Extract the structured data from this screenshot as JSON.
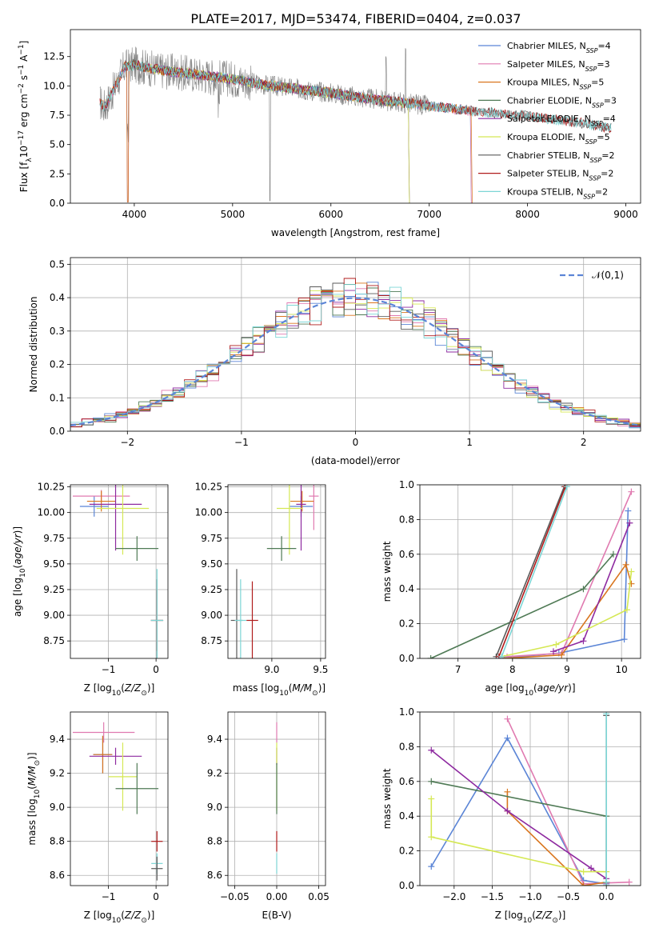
{
  "figure_title": "PLATE=2017, MJD=53474, FIBERID=0404, z=0.037",
  "colors": {
    "chabrier_miles": "#5b85d6",
    "salpeter_miles": "#e07ab0",
    "kroupa_miles": "#d9761f",
    "chabrier_elodie": "#4f7a55",
    "salpeter_elodie": "#8e2aa0",
    "kroupa_elodie": "#d5e854",
    "chabrier_stelib": "#5a5a5a",
    "salpeter_stelib": "#b01c1c",
    "kroupa_stelib": "#7dd6d6",
    "data": "#808080",
    "normal": "#5b85d6"
  },
  "chart_data": [
    {
      "id": "spectrum",
      "type": "line",
      "title": "PLATE=2017, MJD=53474, FIBERID=0404, z=0.037",
      "xlabel": "wavelength [Angstrom, rest frame]",
      "ylabel": "Flux [f_λ 10^-17 erg cm^-2 s^-1 A^-1]",
      "xlim": [
        3350,
        9150
      ],
      "ylim": [
        0,
        14.8
      ],
      "xticks": [
        4000,
        5000,
        6000,
        7000,
        8000,
        9000
      ],
      "yticks": [
        0.0,
        2.5,
        5.0,
        7.5,
        10.0,
        12.5
      ],
      "legend_position": "upper-right",
      "legend": [
        {
          "model": "Chabrier MILES",
          "nssp": "4",
          "color_key": "chabrier_miles"
        },
        {
          "model": "Salpeter MILES",
          "nssp": "3",
          "color_key": "salpeter_miles"
        },
        {
          "model": "Kroupa MILES",
          "nssp": "5",
          "color_key": "kroupa_miles"
        },
        {
          "model": "Chabrier ELODIE",
          "nssp": "3",
          "color_key": "chabrier_elodie"
        },
        {
          "model": "Salpeter ELODIE",
          "nssp": "4",
          "color_key": "salpeter_elodie"
        },
        {
          "model": "Kroupa ELODIE",
          "nssp": "5",
          "color_key": "kroupa_elodie"
        },
        {
          "model": "Chabrier STELIB",
          "nssp": "2",
          "color_key": "chabrier_stelib"
        },
        {
          "model": "Salpeter STELIB",
          "nssp": "2",
          "color_key": "salpeter_stelib"
        },
        {
          "model": "Kroupa STELIB",
          "nssp": "2",
          "color_key": "kroupa_stelib"
        }
      ],
      "continuum": {
        "x": [
          3650,
          3700,
          3800,
          3900,
          4000,
          4100,
          4300,
          4500,
          4700,
          5000,
          5300,
          5600,
          6000,
          6300,
          6600,
          7000,
          7400,
          8000,
          8500,
          8850
        ],
        "y": [
          8.6,
          8.2,
          9.8,
          11.6,
          11.8,
          11.6,
          11.3,
          11.1,
          10.9,
          10.6,
          10.1,
          9.8,
          9.4,
          9.0,
          8.7,
          8.3,
          7.9,
          7.4,
          6.9,
          6.4
        ]
      },
      "model_ranges": {
        "chabrier_miles": [
          3650,
          7420
        ],
        "salpeter_miles": [
          3650,
          7420
        ],
        "kroupa_miles": [
          3650,
          7430
        ],
        "chabrier_elodie": [
          3900,
          6790
        ],
        "salpeter_elodie": [
          3900,
          6790
        ],
        "kroupa_elodie": [
          3900,
          6790
        ],
        "chabrier_stelib": [
          3650,
          8850
        ],
        "salpeter_stelib": [
          3650,
          8850
        ],
        "kroupa_stelib": [
          3650,
          8850
        ]
      }
    },
    {
      "id": "residuals",
      "type": "step",
      "xlabel": "(data-model)/error",
      "ylabel": "Normed distribution",
      "xlim": [
        -2.5,
        2.5
      ],
      "ylim": [
        0,
        0.52
      ],
      "xticks": [
        -2,
        -1,
        0,
        1,
        2
      ],
      "yticks": [
        0.0,
        0.1,
        0.2,
        0.3,
        0.4,
        0.5
      ],
      "legend_label": "𝒩(0,1)",
      "legend_position": "upper-right",
      "bin_width": 0.1
    },
    {
      "id": "age_vs_Z",
      "type": "errorbar",
      "xlabel": "Z [log10(Z/Z⊙)]",
      "ylabel": "age [log10(age/yr)]",
      "xlim": [
        -1.8,
        0.25
      ],
      "ylim": [
        8.58,
        10.27
      ],
      "xticks": [
        -1,
        0
      ],
      "yticks": [
        8.75,
        9.0,
        9.25,
        9.5,
        9.75,
        10.0,
        10.25
      ],
      "points": [
        {
          "key": "chabrier_miles",
          "x": -1.3,
          "y": 10.06,
          "xerr": 0.3,
          "yerr": 0.1
        },
        {
          "key": "salpeter_miles",
          "x": -1.15,
          "y": 10.16,
          "xerr": 0.6,
          "yerr": 0.06
        },
        {
          "key": "kroupa_miles",
          "x": -1.15,
          "y": 10.11,
          "xerr": 0.3,
          "yerr": 0.1
        },
        {
          "key": "salpeter_elodie",
          "x": -0.85,
          "y": 10.08,
          "xerr": 0.55,
          "yerr": 0.45
        },
        {
          "key": "kroupa_elodie",
          "x": -0.7,
          "y": 10.04,
          "xerr": 0.55,
          "yerr": 0.45
        },
        {
          "key": "chabrier_elodie",
          "x": -0.4,
          "y": 9.65,
          "xerr": 0.45,
          "yerr": 0.12
        },
        {
          "key": "chabrier_stelib",
          "x": 0.02,
          "y": 8.95,
          "xerr": 0.13,
          "yerr": 0.4
        },
        {
          "key": "salpeter_stelib",
          "x": 0.02,
          "y": 8.95,
          "xerr": 0.13,
          "yerr": 0.3
        },
        {
          "key": "kroupa_stelib",
          "x": 0.02,
          "y": 8.95,
          "xerr": 0.13,
          "yerr": 0.5
        }
      ]
    },
    {
      "id": "age_vs_mass",
      "type": "errorbar",
      "xlabel": "mass [log10(M/M⊙)]",
      "xlim": [
        8.55,
        9.55
      ],
      "ylim": [
        8.58,
        10.27
      ],
      "xticks": [
        9.0,
        9.5
      ],
      "yticks": [
        8.75,
        9.0,
        9.25,
        9.5,
        9.75,
        10.0,
        10.25
      ],
      "points": [
        {
          "key": "chabrier_miles",
          "x": 9.3,
          "y": 10.06,
          "xerr": 0.12,
          "yerr": 0.1
        },
        {
          "key": "salpeter_miles",
          "x": 9.43,
          "y": 10.16,
          "xerr": 0.05,
          "yerr": 0.33
        },
        {
          "key": "kroupa_miles",
          "x": 9.31,
          "y": 10.11,
          "xerr": 0.12,
          "yerr": 0.1
        },
        {
          "key": "salpeter_elodie",
          "x": 9.3,
          "y": 10.08,
          "xerr": 0.05,
          "yerr": 0.45
        },
        {
          "key": "kroupa_elodie",
          "x": 9.18,
          "y": 10.04,
          "xerr": 0.13,
          "yerr": 0.45
        },
        {
          "key": "chabrier_elodie",
          "x": 9.1,
          "y": 9.65,
          "xerr": 0.15,
          "yerr": 0.12
        },
        {
          "key": "chabrier_stelib",
          "x": 8.64,
          "y": 8.95,
          "xerr": 0.06,
          "yerr": 0.5
        },
        {
          "key": "salpeter_stelib",
          "x": 8.8,
          "y": 8.95,
          "xerr": 0.06,
          "yerr": 0.38
        },
        {
          "key": "kroupa_stelib",
          "x": 8.68,
          "y": 8.95,
          "xerr": 0.06,
          "yerr": 0.4
        }
      ]
    },
    {
      "id": "weight_vs_age",
      "type": "line",
      "xlabel": "age [log10(age/yr)]",
      "ylabel": "mass weight",
      "xlim": [
        6.3,
        10.35
      ],
      "ylim": [
        0,
        1.0
      ],
      "xticks": [
        7,
        8,
        9,
        10
      ],
      "yticks": [
        0.0,
        0.2,
        0.4,
        0.6,
        0.8,
        1.0
      ],
      "series": [
        {
          "key": "chabrier_miles",
          "x": [
            7.75,
            8.85,
            10.05,
            10.12
          ],
          "y": [
            0.0,
            0.03,
            0.11,
            0.85
          ]
        },
        {
          "key": "salpeter_miles",
          "x": [
            7.9,
            8.9,
            10.18
          ],
          "y": [
            0.01,
            0.03,
            0.96
          ]
        },
        {
          "key": "kroupa_miles",
          "x": [
            7.85,
            8.9,
            10.08,
            10.18
          ],
          "y": [
            0.0,
            0.02,
            0.54,
            0.43
          ]
        },
        {
          "key": "chabrier_elodie",
          "x": [
            6.5,
            9.3,
            9.85
          ],
          "y": [
            0.0,
            0.4,
            0.6
          ]
        },
        {
          "key": "salpeter_elodie",
          "x": [
            8.75,
            9.3,
            10.15
          ],
          "y": [
            0.04,
            0.1,
            0.78
          ]
        },
        {
          "key": "kroupa_elodie",
          "x": [
            7.8,
            8.8,
            10.1,
            10.18
          ],
          "y": [
            0.01,
            0.08,
            0.28,
            0.5
          ]
        },
        {
          "key": "chabrier_stelib",
          "x": [
            7.7,
            8.95
          ],
          "y": [
            0.01,
            0.99
          ]
        },
        {
          "key": "salpeter_stelib",
          "x": [
            7.75,
            8.97
          ],
          "y": [
            0.01,
            0.99
          ]
        },
        {
          "key": "kroupa_stelib",
          "x": [
            7.8,
            9.0
          ],
          "y": [
            0.01,
            0.99
          ]
        }
      ]
    },
    {
      "id": "mass_vs_Z",
      "type": "errorbar",
      "xlabel": "Z [log10(Z/Z⊙)]",
      "ylabel": "mass [log10(M/M⊙)]",
      "xlim": [
        -1.8,
        0.25
      ],
      "ylim": [
        8.54,
        9.56
      ],
      "xticks": [
        -1,
        0
      ],
      "yticks": [
        8.6,
        8.8,
        9.0,
        9.2,
        9.4
      ],
      "points": [
        {
          "key": "salpeter_miles",
          "x": -1.1,
          "y": 9.44,
          "xerr": 0.65,
          "yerr": 0.06
        },
        {
          "key": "chabrier_miles",
          "x": -1.12,
          "y": 9.31,
          "xerr": 0.2,
          "yerr": 0.11
        },
        {
          "key": "kroupa_miles",
          "x": -1.12,
          "y": 9.31,
          "xerr": 0.2,
          "yerr": 0.11
        },
        {
          "key": "salpeter_elodie",
          "x": -0.85,
          "y": 9.3,
          "xerr": 0.55,
          "yerr": 0.05
        },
        {
          "key": "kroupa_elodie",
          "x": -0.7,
          "y": 9.18,
          "xerr": 0.3,
          "yerr": 0.2
        },
        {
          "key": "chabrier_elodie",
          "x": -0.4,
          "y": 9.11,
          "xerr": 0.45,
          "yerr": 0.15
        },
        {
          "key": "salpeter_stelib",
          "x": 0.02,
          "y": 8.8,
          "xerr": 0.12,
          "yerr": 0.06
        },
        {
          "key": "kroupa_stelib",
          "x": 0.02,
          "y": 8.67,
          "xerr": 0.12,
          "yerr": 0.06
        },
        {
          "key": "chabrier_stelib",
          "x": 0.02,
          "y": 8.64,
          "xerr": 0.12,
          "yerr": 0.07
        }
      ]
    },
    {
      "id": "mass_vs_EBV",
      "type": "errorbar",
      "xlabel": "E(B-V)",
      "xlim": [
        -0.058,
        0.058
      ],
      "ylim": [
        8.54,
        9.56
      ],
      "xticks": [
        -0.05,
        0.0,
        0.05
      ],
      "yticks": [
        8.6,
        8.8,
        9.0,
        9.2,
        9.4
      ],
      "points": [
        {
          "key": "salpeter_miles",
          "x": 0.0,
          "y": 9.44,
          "yerr": 0.06
        },
        {
          "key": "salpeter_elodie",
          "x": 0.0,
          "y": 9.3,
          "yerr": 0.05
        },
        {
          "key": "kroupa_elodie",
          "x": 0.0,
          "y": 9.18,
          "yerr": 0.2
        },
        {
          "key": "chabrier_elodie",
          "x": 0.0,
          "y": 9.11,
          "yerr": 0.15
        },
        {
          "key": "salpeter_stelib",
          "x": 0.0,
          "y": 8.8,
          "yerr": 0.06
        },
        {
          "key": "kroupa_stelib",
          "x": 0.0,
          "y": 8.67,
          "yerr": 0.06
        }
      ]
    },
    {
      "id": "weight_vs_Z",
      "type": "line",
      "xlabel": "Z [log10(Z/Z⊙)]",
      "ylabel": "mass weight",
      "xlim": [
        -2.45,
        0.45
      ],
      "ylim": [
        0,
        1.0
      ],
      "xticks": [
        -2.0,
        -1.5,
        -1.0,
        -0.5,
        0.0
      ],
      "yticks": [
        0.0,
        0.2,
        0.4,
        0.6,
        0.8,
        1.0
      ],
      "series": [
        {
          "key": "chabrier_miles",
          "x": [
            -2.3,
            -1.3,
            -0.3,
            0.0
          ],
          "y": [
            0.11,
            0.85,
            0.03,
            0.01
          ]
        },
        {
          "key": "salpeter_miles",
          "x": [
            -1.3,
            -0.3,
            0.3
          ],
          "y": [
            0.96,
            0.01,
            0.02
          ]
        },
        {
          "key": "kroupa_miles",
          "x": [
            -1.3,
            -1.3,
            -0.3,
            0.0
          ],
          "y": [
            0.54,
            0.43,
            0.0,
            0.02
          ]
        },
        {
          "key": "chabrier_elodie",
          "x": [
            -2.3,
            0.0,
            0.0
          ],
          "y": [
            0.6,
            0.4,
            0.0
          ]
        },
        {
          "key": "salpeter_elodie",
          "x": [
            -2.3,
            -1.3,
            -0.2,
            0.0
          ],
          "y": [
            0.78,
            0.43,
            0.1,
            0.04
          ]
        },
        {
          "key": "kroupa_elodie",
          "x": [
            -2.3,
            -2.3,
            -0.3,
            0.0
          ],
          "y": [
            0.5,
            0.28,
            0.08,
            0.08
          ]
        },
        {
          "key": "chabrier_stelib",
          "x": [
            0.0,
            0.0
          ],
          "y": [
            0.02,
            0.98
          ]
        },
        {
          "key": "kroupa_stelib",
          "x": [
            0.0,
            0.0
          ],
          "y": [
            0.02,
            0.99
          ]
        }
      ]
    }
  ]
}
